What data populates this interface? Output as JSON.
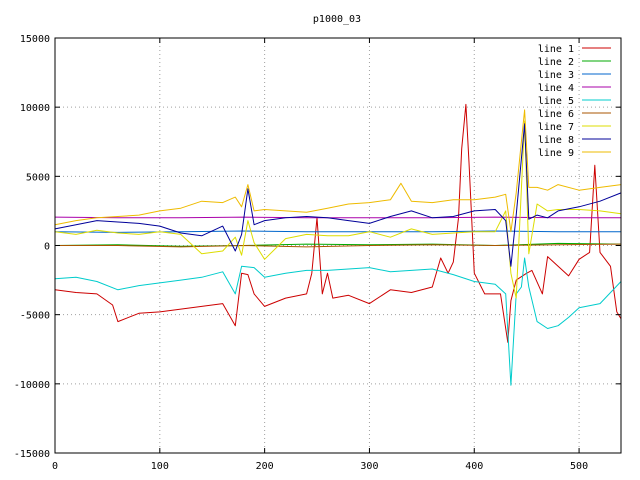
{
  "chart_data": {
    "type": "line",
    "title": "p1000_03",
    "xlabel": "",
    "ylabel": "",
    "xlim": [
      0,
      540
    ],
    "ylim": [
      -15000,
      15000
    ],
    "x_ticks": [
      0,
      100,
      200,
      300,
      400,
      500
    ],
    "y_ticks": [
      -15000,
      -10000,
      -5000,
      0,
      5000,
      10000,
      15000
    ],
    "grid": true,
    "legend_position": "top-right",
    "series": [
      {
        "name": "line 1",
        "color": "#cc0000",
        "points": [
          [
            0,
            -3200
          ],
          [
            20,
            -3400
          ],
          [
            40,
            -3500
          ],
          [
            55,
            -4300
          ],
          [
            60,
            -5500
          ],
          [
            80,
            -4900
          ],
          [
            100,
            -4800
          ],
          [
            120,
            -4600
          ],
          [
            140,
            -4400
          ],
          [
            160,
            -4200
          ],
          [
            172,
            -5800
          ],
          [
            178,
            -2000
          ],
          [
            184,
            -2100
          ],
          [
            190,
            -3500
          ],
          [
            200,
            -4400
          ],
          [
            220,
            -3800
          ],
          [
            240,
            -3500
          ],
          [
            245,
            -2000
          ],
          [
            250,
            2000
          ],
          [
            255,
            -3500
          ],
          [
            260,
            -2000
          ],
          [
            265,
            -3800
          ],
          [
            280,
            -3600
          ],
          [
            300,
            -4200
          ],
          [
            320,
            -3200
          ],
          [
            340,
            -3400
          ],
          [
            360,
            -3000
          ],
          [
            368,
            -900
          ],
          [
            375,
            -2000
          ],
          [
            380,
            -1200
          ],
          [
            385,
            2000
          ],
          [
            388,
            7000
          ],
          [
            392,
            10200
          ],
          [
            395,
            6000
          ],
          [
            400,
            -2000
          ],
          [
            410,
            -3500
          ],
          [
            425,
            -3500
          ],
          [
            432,
            -7000
          ],
          [
            435,
            -4000
          ],
          [
            440,
            -2500
          ],
          [
            450,
            -2000
          ],
          [
            455,
            -1800
          ],
          [
            465,
            -3500
          ],
          [
            470,
            -800
          ],
          [
            480,
            -1500
          ],
          [
            490,
            -2200
          ],
          [
            500,
            -1000
          ],
          [
            510,
            -500
          ],
          [
            515,
            5800
          ],
          [
            520,
            -500
          ],
          [
            530,
            -1500
          ],
          [
            536,
            -4800
          ],
          [
            540,
            -5300
          ]
        ]
      },
      {
        "name": "line 2",
        "color": "#00aa00",
        "points": [
          [
            0,
            0
          ],
          [
            60,
            50
          ],
          [
            120,
            -50
          ],
          [
            180,
            0
          ],
          [
            240,
            100
          ],
          [
            300,
            50
          ],
          [
            360,
            100
          ],
          [
            420,
            0
          ],
          [
            480,
            150
          ],
          [
            540,
            100
          ]
        ]
      },
      {
        "name": "line 3",
        "color": "#0066cc",
        "points": [
          [
            0,
            1000
          ],
          [
            60,
            950
          ],
          [
            120,
            1000
          ],
          [
            180,
            1050
          ],
          [
            240,
            1000
          ],
          [
            300,
            1000
          ],
          [
            360,
            1000
          ],
          [
            420,
            1050
          ],
          [
            480,
            1000
          ],
          [
            540,
            1000
          ]
        ]
      },
      {
        "name": "line 4",
        "color": "#aa00aa",
        "points": [
          [
            0,
            2050
          ],
          [
            60,
            2000
          ],
          [
            120,
            2000
          ],
          [
            180,
            2050
          ],
          [
            240,
            2000
          ],
          [
            300,
            2000
          ],
          [
            360,
            2000
          ],
          [
            420,
            2050
          ],
          [
            480,
            2000
          ],
          [
            540,
            2000
          ]
        ]
      },
      {
        "name": "line 5",
        "color": "#00cccc",
        "points": [
          [
            0,
            -2400
          ],
          [
            20,
            -2300
          ],
          [
            40,
            -2600
          ],
          [
            60,
            -3200
          ],
          [
            80,
            -2900
          ],
          [
            100,
            -2700
          ],
          [
            120,
            -2500
          ],
          [
            140,
            -2300
          ],
          [
            160,
            -1900
          ],
          [
            172,
            -3500
          ],
          [
            178,
            -1500
          ],
          [
            190,
            -1600
          ],
          [
            200,
            -2300
          ],
          [
            220,
            -2000
          ],
          [
            240,
            -1800
          ],
          [
            260,
            -1800
          ],
          [
            280,
            -1700
          ],
          [
            300,
            -1600
          ],
          [
            320,
            -1900
          ],
          [
            340,
            -1800
          ],
          [
            360,
            -1700
          ],
          [
            380,
            -2100
          ],
          [
            400,
            -2600
          ],
          [
            420,
            -2800
          ],
          [
            430,
            -3500
          ],
          [
            435,
            -10100
          ],
          [
            440,
            -3500
          ],
          [
            445,
            -3000
          ],
          [
            448,
            -900
          ],
          [
            452,
            -3000
          ],
          [
            460,
            -5500
          ],
          [
            470,
            -6000
          ],
          [
            480,
            -5800
          ],
          [
            490,
            -5200
          ],
          [
            500,
            -4500
          ],
          [
            520,
            -4200
          ],
          [
            540,
            -2600
          ]
        ]
      },
      {
        "name": "line 6",
        "color": "#aa5500",
        "points": [
          [
            0,
            0
          ],
          [
            60,
            0
          ],
          [
            120,
            -100
          ],
          [
            180,
            0
          ],
          [
            240,
            -100
          ],
          [
            300,
            0
          ],
          [
            360,
            50
          ],
          [
            420,
            0
          ],
          [
            480,
            50
          ],
          [
            540,
            100
          ]
        ]
      },
      {
        "name": "line 7",
        "color": "#dddd00",
        "points": [
          [
            0,
            1000
          ],
          [
            20,
            800
          ],
          [
            40,
            1100
          ],
          [
            60,
            900
          ],
          [
            80,
            800
          ],
          [
            100,
            1000
          ],
          [
            120,
            800
          ],
          [
            140,
            -600
          ],
          [
            160,
            -400
          ],
          [
            172,
            600
          ],
          [
            178,
            -700
          ],
          [
            184,
            1800
          ],
          [
            190,
            200
          ],
          [
            200,
            -1000
          ],
          [
            220,
            500
          ],
          [
            240,
            800
          ],
          [
            260,
            700
          ],
          [
            280,
            700
          ],
          [
            300,
            1000
          ],
          [
            320,
            600
          ],
          [
            340,
            1200
          ],
          [
            360,
            800
          ],
          [
            380,
            900
          ],
          [
            400,
            1000
          ],
          [
            420,
            1000
          ],
          [
            430,
            2500
          ],
          [
            435,
            -2000
          ],
          [
            440,
            -3800
          ],
          [
            448,
            9000
          ],
          [
            452,
            -600
          ],
          [
            460,
            3000
          ],
          [
            470,
            2500
          ],
          [
            480,
            2600
          ],
          [
            500,
            2600
          ],
          [
            520,
            2500
          ],
          [
            540,
            2300
          ]
        ]
      },
      {
        "name": "line 8",
        "color": "#000099",
        "points": [
          [
            0,
            1200
          ],
          [
            20,
            1500
          ],
          [
            40,
            1800
          ],
          [
            60,
            1700
          ],
          [
            80,
            1600
          ],
          [
            100,
            1400
          ],
          [
            120,
            900
          ],
          [
            140,
            700
          ],
          [
            160,
            1400
          ],
          [
            172,
            -400
          ],
          [
            178,
            800
          ],
          [
            184,
            4100
          ],
          [
            190,
            1500
          ],
          [
            200,
            1800
          ],
          [
            220,
            2000
          ],
          [
            240,
            2100
          ],
          [
            260,
            2000
          ],
          [
            280,
            1800
          ],
          [
            300,
            1600
          ],
          [
            320,
            2100
          ],
          [
            340,
            2500
          ],
          [
            360,
            2000
          ],
          [
            380,
            2100
          ],
          [
            400,
            2500
          ],
          [
            420,
            2600
          ],
          [
            430,
            1800
          ],
          [
            435,
            -1500
          ],
          [
            440,
            2200
          ],
          [
            448,
            8800
          ],
          [
            452,
            1900
          ],
          [
            460,
            2200
          ],
          [
            470,
            2000
          ],
          [
            480,
            2500
          ],
          [
            500,
            2800
          ],
          [
            520,
            3200
          ],
          [
            540,
            3800
          ]
        ]
      },
      {
        "name": "line 9",
        "color": "#eebb00",
        "points": [
          [
            0,
            1500
          ],
          [
            20,
            1800
          ],
          [
            40,
            2000
          ],
          [
            60,
            2100
          ],
          [
            80,
            2200
          ],
          [
            100,
            2500
          ],
          [
            120,
            2700
          ],
          [
            140,
            3200
          ],
          [
            160,
            3100
          ],
          [
            172,
            3500
          ],
          [
            178,
            2800
          ],
          [
            184,
            4400
          ],
          [
            190,
            2500
          ],
          [
            200,
            2600
          ],
          [
            220,
            2500
          ],
          [
            240,
            2400
          ],
          [
            260,
            2700
          ],
          [
            280,
            3000
          ],
          [
            300,
            3100
          ],
          [
            320,
            3300
          ],
          [
            330,
            4500
          ],
          [
            340,
            3200
          ],
          [
            360,
            3100
          ],
          [
            380,
            3300
          ],
          [
            400,
            3300
          ],
          [
            420,
            3500
          ],
          [
            430,
            3700
          ],
          [
            435,
            1000
          ],
          [
            440,
            3800
          ],
          [
            448,
            9800
          ],
          [
            452,
            4200
          ],
          [
            460,
            4200
          ],
          [
            470,
            4000
          ],
          [
            480,
            4400
          ],
          [
            500,
            4000
          ],
          [
            520,
            4200
          ],
          [
            540,
            4400
          ]
        ]
      }
    ]
  }
}
